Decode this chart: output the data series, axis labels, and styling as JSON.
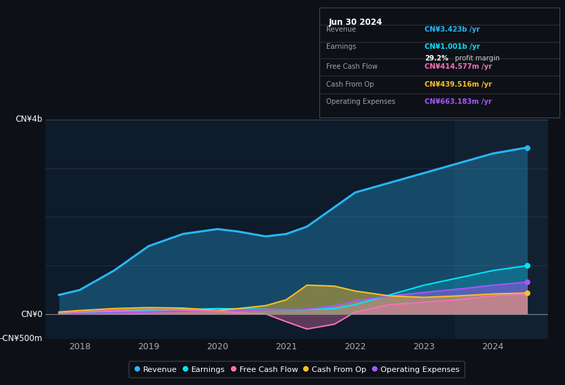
{
  "background_color": "#0d1117",
  "plot_bg_color": "#0d1b2a",
  "years": [
    2017.7,
    2018.0,
    2018.5,
    2019.0,
    2019.5,
    2020.0,
    2020.3,
    2020.7,
    2021.0,
    2021.3,
    2021.7,
    2022.0,
    2022.5,
    2023.0,
    2023.5,
    2024.0,
    2024.5
  ],
  "revenue": [
    400,
    500,
    900,
    1400,
    1650,
    1750,
    1700,
    1600,
    1650,
    1800,
    2200,
    2500,
    2700,
    2900,
    3100,
    3300,
    3423
  ],
  "earnings": [
    30,
    40,
    60,
    80,
    100,
    120,
    115,
    105,
    95,
    100,
    120,
    200,
    400,
    600,
    750,
    900,
    1001
  ],
  "free_cash_flow": [
    20,
    50,
    80,
    100,
    90,
    70,
    30,
    10,
    -150,
    -300,
    -200,
    50,
    200,
    250,
    300,
    380,
    415
  ],
  "cash_from_op": [
    50,
    80,
    120,
    140,
    130,
    80,
    120,
    180,
    300,
    600,
    580,
    480,
    380,
    350,
    380,
    420,
    440
  ],
  "operating_expenses": [
    10,
    20,
    35,
    50,
    65,
    80,
    90,
    95,
    100,
    110,
    180,
    280,
    380,
    450,
    520,
    600,
    663
  ],
  "revenue_color": "#29b6f6",
  "earnings_color": "#00e5ff",
  "free_cash_flow_color": "#f472b6",
  "cash_from_op_color": "#fbbf24",
  "operating_expenses_color": "#a855f7",
  "ylim_min": -500,
  "ylim_max": 4000,
  "xlim_min": 2017.5,
  "xlim_max": 2024.8,
  "xtick_vals": [
    2018,
    2019,
    2020,
    2021,
    2022,
    2023,
    2024
  ],
  "legend_labels": [
    "Revenue",
    "Earnings",
    "Free Cash Flow",
    "Cash From Op",
    "Operating Expenses"
  ],
  "info_title": "Jun 30 2024",
  "info_rows": [
    {
      "label": "Revenue",
      "value": "CN¥3.423b /yr",
      "value_color": "#29b6f6"
    },
    {
      "label": "Earnings",
      "value": "CN¥1.001b /yr",
      "value_color": "#00e5ff"
    },
    {
      "label": "",
      "value": "29.2% profit margin",
      "value_color": "#ffffff",
      "bold": "29.2%"
    },
    {
      "label": "Free Cash Flow",
      "value": "CN¥414.577m /yr",
      "value_color": "#f472b6"
    },
    {
      "label": "Cash From Op",
      "value": "CN¥439.516m /yr",
      "value_color": "#fbbf24"
    },
    {
      "label": "Operating Expenses",
      "value": "CN¥663.183m /yr",
      "value_color": "#a855f7"
    }
  ]
}
